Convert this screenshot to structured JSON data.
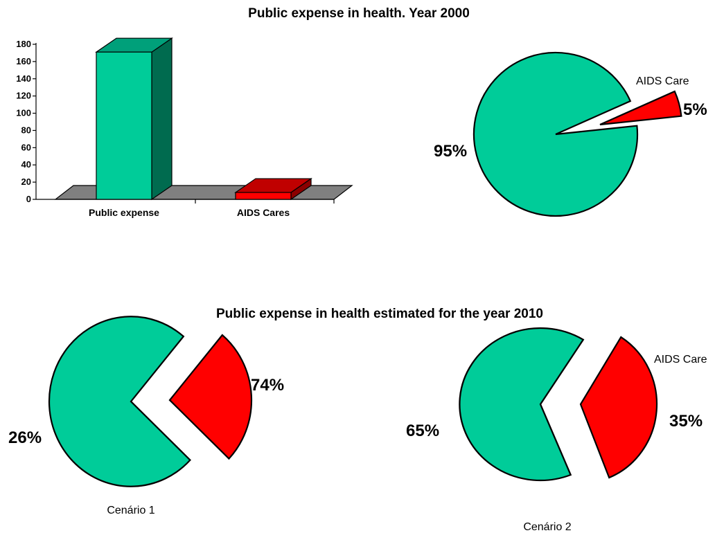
{
  "titles": {
    "top": "Public expense in health. Year 2000",
    "bottom": "Public expense in health estimated for the year 2010"
  },
  "colors": {
    "green": "#00cc99",
    "green_side": "#006b4f",
    "green_top": "#00a07a",
    "red": "#ff0000",
    "red_side": "#8b0000",
    "red_top": "#c00000",
    "floor": "#808080"
  },
  "chart_data": [
    {
      "type": "bar",
      "title": "Public expense in health. Year 2000",
      "categories": [
        "Public expense",
        "AIDS Cares"
      ],
      "values": [
        171,
        8
      ],
      "ylim": [
        0,
        180
      ],
      "yticks": [
        "0",
        "20",
        "40",
        "60",
        "80",
        "100",
        "120",
        "140",
        "160",
        "180"
      ],
      "grid": false,
      "style": "3d"
    },
    {
      "type": "pie",
      "slices": [
        {
          "label": "",
          "value": 95,
          "display": "95%"
        },
        {
          "label": "AIDS Care",
          "value": 5,
          "display": "5%"
        }
      ]
    },
    {
      "type": "pie",
      "title": "Public expense in health estimated for the year 2010",
      "caption": "Cenário 1",
      "slices": [
        {
          "label": "",
          "value": 74,
          "display": "74%"
        },
        {
          "label": "",
          "value": 26,
          "display": "26%"
        }
      ]
    },
    {
      "type": "pie",
      "caption": "Cenário 2",
      "slices": [
        {
          "label": "",
          "value": 65,
          "display": "65%"
        },
        {
          "label": "AIDS Care",
          "value": 35,
          "display": "35%"
        }
      ]
    }
  ]
}
